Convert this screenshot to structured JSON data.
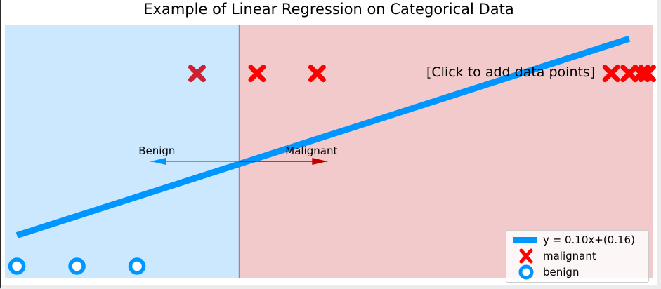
{
  "chart_data": {
    "type": "scatter",
    "title": "Example of Linear Regression on Categorical Data",
    "xlim": [
      -0.2,
      10.6
    ],
    "ylim": [
      -0.06,
      1.25
    ],
    "threshold_x": 3.7,
    "regression": {
      "label": "y = 0.10x+(0.16)",
      "x_start": 0.0,
      "x_end": 10.2,
      "slope": 0.1,
      "intercept": 0.16,
      "color": "#0096ff"
    },
    "series": [
      {
        "name": "malignant",
        "kind": "malignant",
        "color": "#ff0000",
        "x": [
          3.0,
          4.0,
          5.0,
          9.9,
          10.2,
          10.4,
          10.5
        ],
        "y": [
          1,
          1,
          1,
          1,
          1,
          1,
          1
        ]
      },
      {
        "name": "benign",
        "kind": "benign",
        "color": "#0096ff",
        "x": [
          0.0,
          1.0,
          2.0
        ],
        "y": [
          0,
          0,
          0
        ]
      }
    ],
    "highlighted_point": {
      "x": 3.0,
      "y": 1,
      "color": "#cc2133"
    },
    "regions": [
      {
        "name": "benign-region",
        "color": "#cbe8ff"
      },
      {
        "name": "malignant-region",
        "color": "#f2cacc"
      }
    ],
    "annotations": {
      "click_hint": "[Click to add data points]",
      "benign_label": "Benign",
      "malignant_label": "Malignant",
      "benign_arrow_color": "#0096ff",
      "malignant_arrow_color": "#c00000"
    },
    "legend": {
      "placement": "lower-right",
      "entries": [
        {
          "label": "y = 0.10x+(0.16)",
          "marker": "line"
        },
        {
          "label": "malignant",
          "marker": "x"
        },
        {
          "label": "benign",
          "marker": "o"
        }
      ]
    },
    "grid": false
  }
}
